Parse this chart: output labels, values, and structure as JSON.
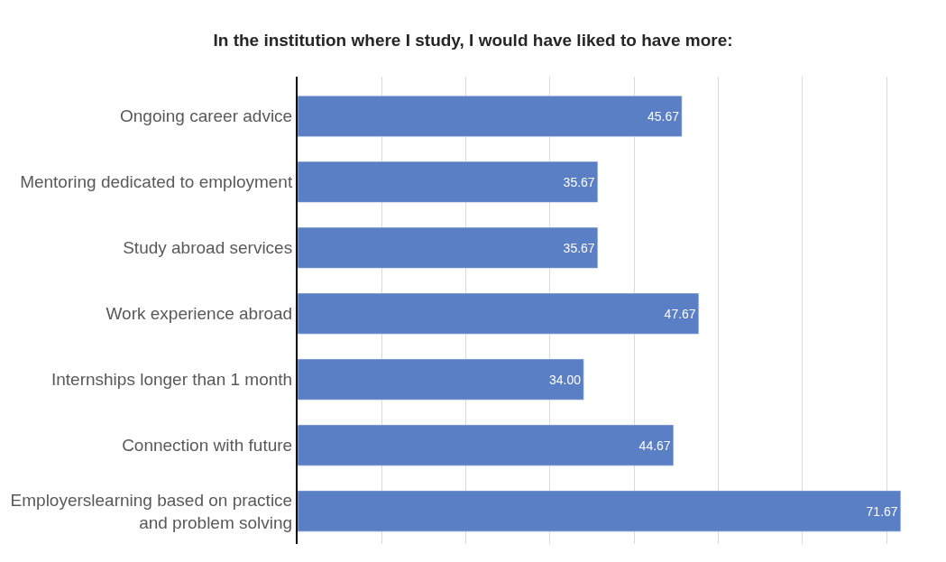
{
  "chart_data": {
    "type": "bar",
    "orientation": "horizontal",
    "title": "In the institution where I study, I would have liked to have more:",
    "categories": [
      "Ongoing career advice",
      "Mentoring dedicated to employment",
      "Study abroad services",
      "Work experience abroad",
      "Internships longer than 1 month",
      "Connection with future",
      "Employerslearning based on practice and problem solving"
    ],
    "values": [
      45.67,
      35.67,
      35.67,
      47.67,
      34.0,
      44.67,
      71.67
    ],
    "value_labels": [
      "45.67",
      "35.67",
      "35.67",
      "47.67",
      "34.00",
      "44.67",
      "71.67"
    ],
    "color": "#5b7fc4",
    "grid": "x",
    "tick_labels": "y",
    "legend": false
  }
}
